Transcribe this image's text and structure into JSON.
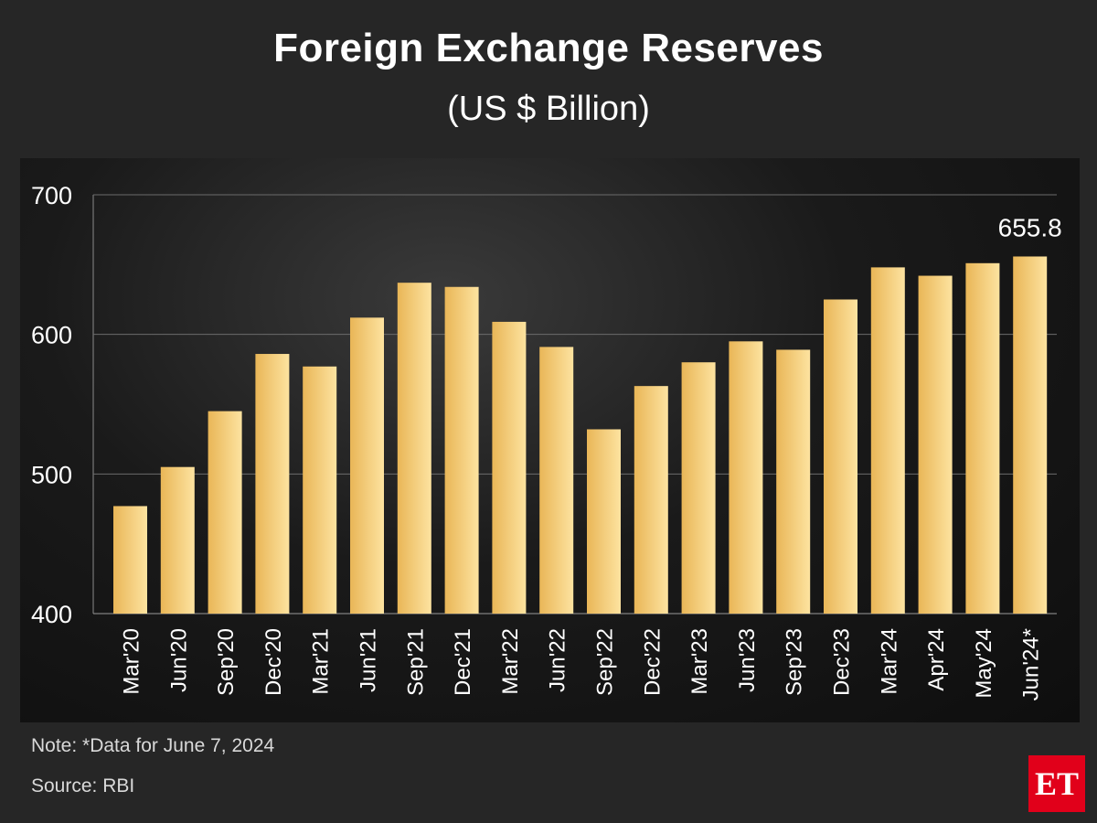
{
  "header": {
    "title": "Foreign Exchange Reserves",
    "subtitle": "(US $ Billion)"
  },
  "footer": {
    "note": "Note: *Data for June 7, 2024",
    "source": "Source: RBI"
  },
  "logo": {
    "text": "ET",
    "color": "#e1001a"
  },
  "colors": {
    "background": "#262626",
    "bar_light": "#fde3a0",
    "bar_dark": "#e9b657",
    "grid": "#6b6b6b",
    "text": "#ffffff"
  },
  "chart_data": {
    "type": "bar",
    "title": "Foreign Exchange Reserves",
    "subtitle": "(US $ Billion)",
    "categories": [
      "Mar'20",
      "Jun'20",
      "Sep'20",
      "Dec'20",
      "Mar'21",
      "Jun'21",
      "Sep'21",
      "Dec'21",
      "Mar'22",
      "Jun'22",
      "Sep'22",
      "Dec'22",
      "Mar'23",
      "Jun'23",
      "Sep'23",
      "Dec'23",
      "Mar'24",
      "Apr'24",
      "May'24",
      "Jun'24*"
    ],
    "values": [
      477,
      505,
      545,
      586,
      577,
      612,
      637,
      634,
      609,
      591,
      532,
      563,
      580,
      595,
      589,
      625,
      648,
      642,
      651,
      655.8
    ],
    "yticks": [
      400,
      500,
      600,
      700
    ],
    "ylim": [
      400,
      700
    ],
    "data_labels": [
      {
        "index": 19,
        "text": "655.8"
      }
    ],
    "xlabel": "",
    "ylabel": "",
    "grid": true,
    "legend": "none"
  }
}
